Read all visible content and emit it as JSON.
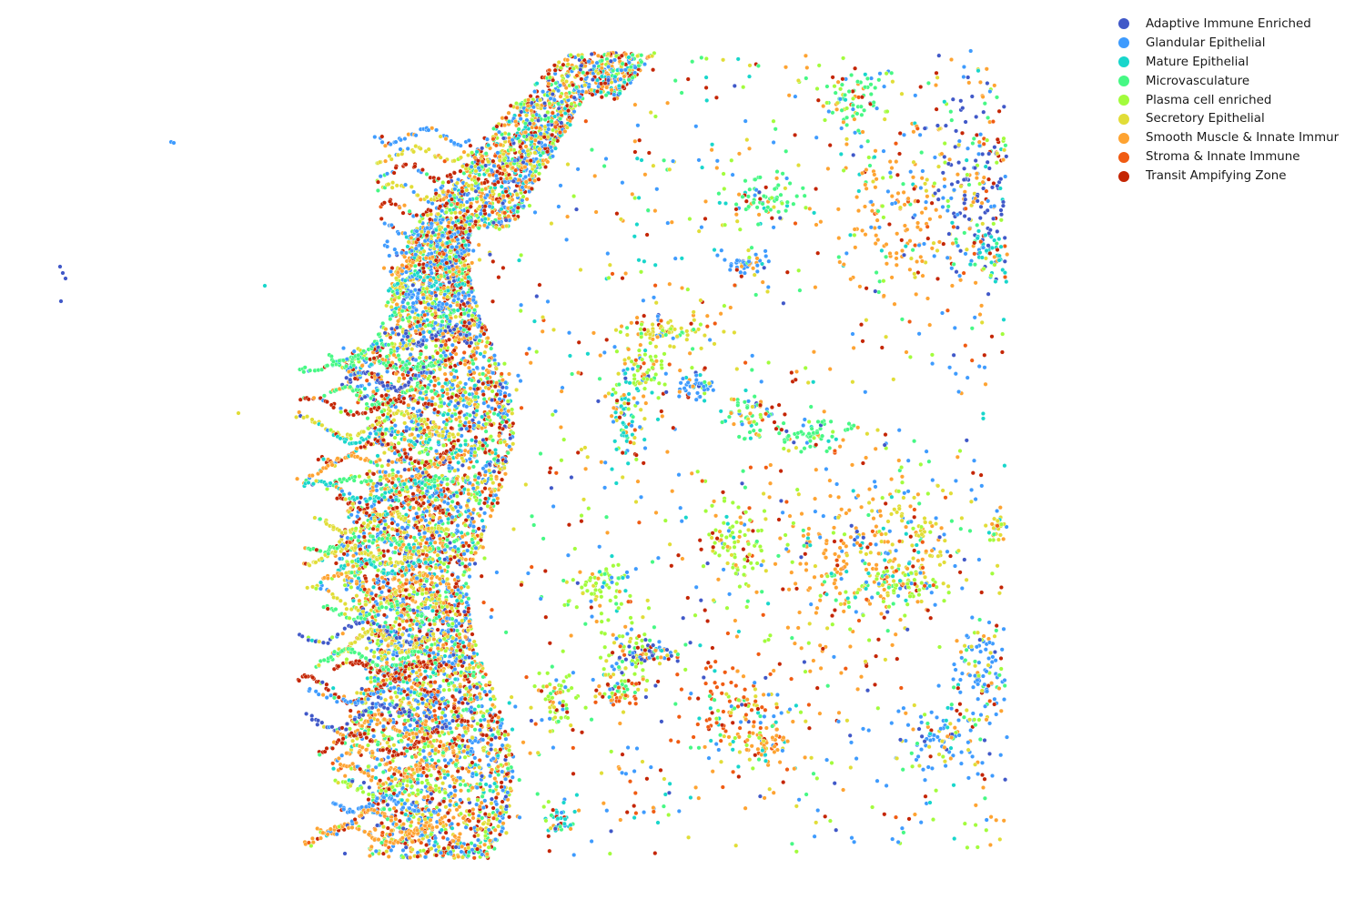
{
  "chart_data": {
    "type": "scatter",
    "title": "",
    "xlabel": "",
    "ylabel": "",
    "axes_visible": false,
    "legend_position": "top-right (outside plot)",
    "series": [
      {
        "name": "Adaptive Immune Enriched",
        "color": "#4058c8"
      },
      {
        "name": "Glandular Epithelial",
        "color": "#3e9bfe"
      },
      {
        "name": "Mature Epithelial",
        "color": "#18d6cb"
      },
      {
        "name": "Microvasculature",
        "color": "#46f884"
      },
      {
        "name": "Plasma cell enriched",
        "color": "#a2fc3c"
      },
      {
        "name": "Secretory Epithelial",
        "color": "#e1dd37"
      },
      {
        "name": "Smooth Muscle & Innate Immur",
        "color": "#fea331"
      },
      {
        "name": "Stroma & Innate Immune",
        "color": "#f05b12"
      },
      {
        "name": "Transit Ampifying Zone",
        "color": "#c42503"
      }
    ]
  }
}
